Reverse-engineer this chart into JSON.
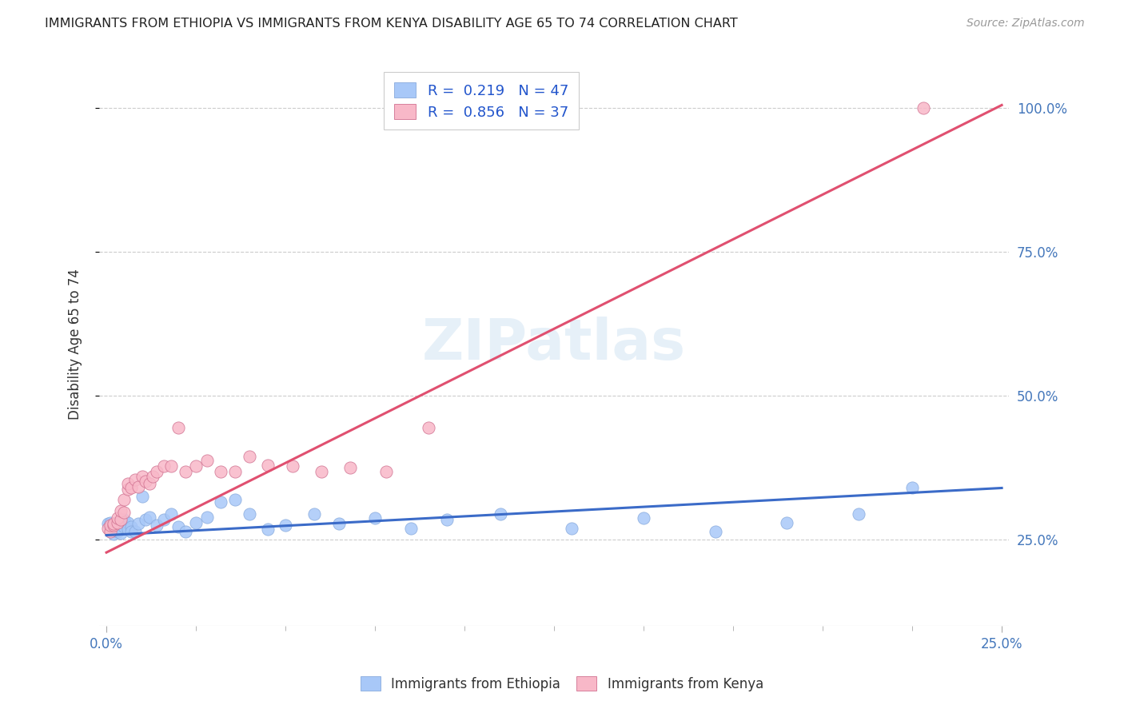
{
  "title": "IMMIGRANTS FROM ETHIOPIA VS IMMIGRANTS FROM KENYA DISABILITY AGE 65 TO 74 CORRELATION CHART",
  "source": "Source: ZipAtlas.com",
  "ylabel": "Disability Age 65 to 74",
  "color_ethiopia": "#a8c8f8",
  "color_kenya": "#f8b8c8",
  "line_color_ethiopia": "#3b6bc8",
  "line_color_kenya": "#e05070",
  "legend_label1": "R =  0.219   N = 47",
  "legend_label2": "R =  0.856   N = 37",
  "ethiopia_scatter_x": [
    0.0005,
    0.001,
    0.001,
    0.001,
    0.002,
    0.002,
    0.002,
    0.003,
    0.003,
    0.003,
    0.004,
    0.004,
    0.005,
    0.005,
    0.006,
    0.006,
    0.007,
    0.007,
    0.008,
    0.009,
    0.01,
    0.011,
    0.012,
    0.014,
    0.016,
    0.018,
    0.02,
    0.022,
    0.025,
    0.028,
    0.032,
    0.036,
    0.04,
    0.045,
    0.05,
    0.058,
    0.065,
    0.075,
    0.085,
    0.095,
    0.11,
    0.13,
    0.15,
    0.17,
    0.19,
    0.21,
    0.225
  ],
  "ethiopia_scatter_y": [
    0.278,
    0.272,
    0.265,
    0.28,
    0.27,
    0.26,
    0.275,
    0.268,
    0.28,
    0.265,
    0.275,
    0.262,
    0.285,
    0.272,
    0.28,
    0.268,
    0.272,
    0.265,
    0.265,
    0.278,
    0.325,
    0.285,
    0.29,
    0.275,
    0.285,
    0.295,
    0.272,
    0.265,
    0.28,
    0.29,
    0.315,
    0.32,
    0.295,
    0.268,
    0.275,
    0.295,
    0.278,
    0.288,
    0.27,
    0.285,
    0.295,
    0.27,
    0.288,
    0.265,
    0.28,
    0.295,
    0.34
  ],
  "kenya_scatter_x": [
    0.0005,
    0.001,
    0.001,
    0.002,
    0.002,
    0.003,
    0.003,
    0.004,
    0.004,
    0.005,
    0.005,
    0.006,
    0.006,
    0.007,
    0.008,
    0.009,
    0.01,
    0.011,
    0.012,
    0.013,
    0.014,
    0.016,
    0.018,
    0.02,
    0.022,
    0.025,
    0.028,
    0.032,
    0.036,
    0.04,
    0.045,
    0.052,
    0.06,
    0.068,
    0.078,
    0.09,
    0.228
  ],
  "kenya_scatter_y": [
    0.27,
    0.265,
    0.275,
    0.275,
    0.278,
    0.28,
    0.288,
    0.285,
    0.3,
    0.298,
    0.32,
    0.338,
    0.348,
    0.34,
    0.355,
    0.342,
    0.36,
    0.352,
    0.348,
    0.36,
    0.368,
    0.378,
    0.378,
    0.445,
    0.368,
    0.378,
    0.388,
    0.368,
    0.368,
    0.395,
    0.38,
    0.378,
    0.368,
    0.375,
    0.368,
    0.445,
    1.0
  ],
  "ethiopia_line_x": [
    0.0,
    0.25
  ],
  "ethiopia_line_y": [
    0.258,
    0.34
  ],
  "kenya_line_x": [
    0.0,
    0.25
  ],
  "kenya_line_y": [
    0.228,
    1.005
  ],
  "xlim": [
    -0.002,
    0.252
  ],
  "ylim": [
    0.1,
    1.08
  ],
  "ytick_vals": [
    0.25,
    0.5,
    0.75,
    1.0
  ],
  "ytick_labels": [
    "25.0%",
    "50.0%",
    "75.0%",
    "100.0%"
  ],
  "xtick_positions": [
    0.0,
    0.25
  ],
  "xtick_labels": [
    "0.0%",
    "25.0%"
  ],
  "watermark_text": "ZIPatlas"
}
